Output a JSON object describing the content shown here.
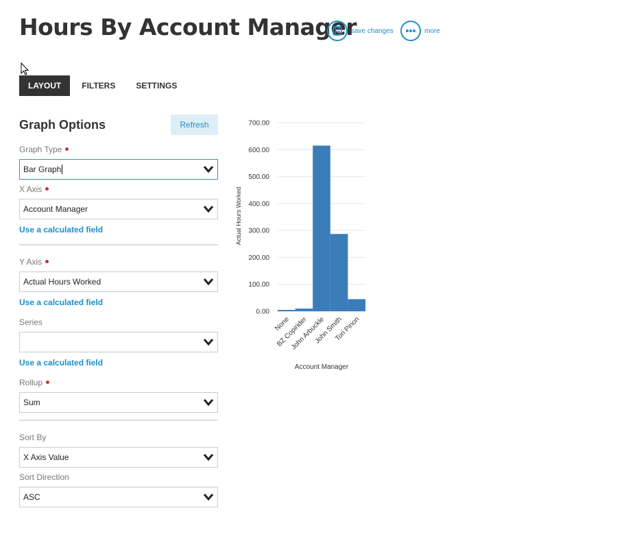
{
  "header": {
    "title": "Hours By Account Manager",
    "save_label": "save changes",
    "more_label": "more"
  },
  "tabs": [
    {
      "label": "LAYOUT",
      "active": true
    },
    {
      "label": "FILTERS",
      "active": false
    },
    {
      "label": "SETTINGS",
      "active": false
    }
  ],
  "graph_options": {
    "title": "Graph Options",
    "refresh_label": "Refresh",
    "graph_type": {
      "label": "Graph Type",
      "value": "Bar Graph",
      "required": true
    },
    "x_axis": {
      "label": "X Axis",
      "value": "Account Manager",
      "required": true
    },
    "y_axis": {
      "label": "Y Axis",
      "value": "Actual Hours Worked",
      "required": true
    },
    "series": {
      "label": "Series",
      "value": ""
    },
    "rollup": {
      "label": "Rollup",
      "value": "Sum",
      "required": true
    },
    "sort_by": {
      "label": "Sort By",
      "value": "X Axis Value"
    },
    "sort_direction": {
      "label": "Sort Direction",
      "value": "ASC"
    },
    "calc_link": "Use a calculated field"
  },
  "colors": {
    "accent": "#1a8fc9",
    "bar": "#3a7db9",
    "required": "#c0392b"
  },
  "chart_data": {
    "type": "bar",
    "categories": [
      "None",
      "BZ Copirider",
      "John Arbuckle",
      "John Smith",
      "Tori Pinon"
    ],
    "values": [
      5,
      10,
      615,
      287,
      45
    ],
    "xlabel": "Account Manager",
    "ylabel": "Actual Hours Worked",
    "ylim": [
      0,
      700
    ],
    "yticks": [
      "0.00",
      "100.00",
      "200.00",
      "300.00",
      "400.00",
      "500.00",
      "600.00",
      "700.00"
    ],
    "grid": true
  }
}
